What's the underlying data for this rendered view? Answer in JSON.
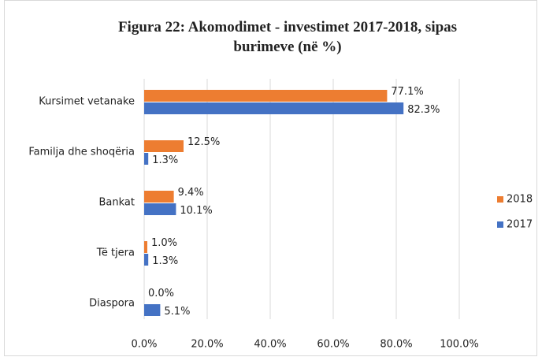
{
  "chart_data": {
    "type": "hbar",
    "title": "Figura 22: Akomodimet - investimet 2017-2018, sipas burimeve (në %)",
    "categories": [
      "Kursimet vetanake",
      "Familja dhe shoqëria",
      "Bankat",
      "Të tjera",
      "Diaspora"
    ],
    "series": [
      {
        "name": "2018",
        "color": "#ed7d31",
        "values": [
          77.1,
          12.5,
          9.4,
          1.0,
          0.0
        ],
        "value_labels": [
          "77.1%",
          "12.5%",
          "9.4%",
          "1.0%",
          "0.0%"
        ]
      },
      {
        "name": "2017",
        "color": "#4472c4",
        "values": [
          82.3,
          1.3,
          10.1,
          1.3,
          5.1
        ],
        "value_labels": [
          "82.3%",
          "1.3%",
          "10.1%",
          "1.3%",
          "5.1%"
        ]
      }
    ],
    "xlim": [
      0,
      100
    ],
    "xticks": [
      {
        "value": 0,
        "label": "0.0%"
      },
      {
        "value": 20,
        "label": "20.0%"
      },
      {
        "value": 40,
        "label": "40.0%"
      },
      {
        "value": 60,
        "label": "60.0%"
      },
      {
        "value": 80,
        "label": "80.0%"
      },
      {
        "value": 100,
        "label": "100.0%"
      }
    ],
    "grid": true,
    "legend": "right"
  }
}
